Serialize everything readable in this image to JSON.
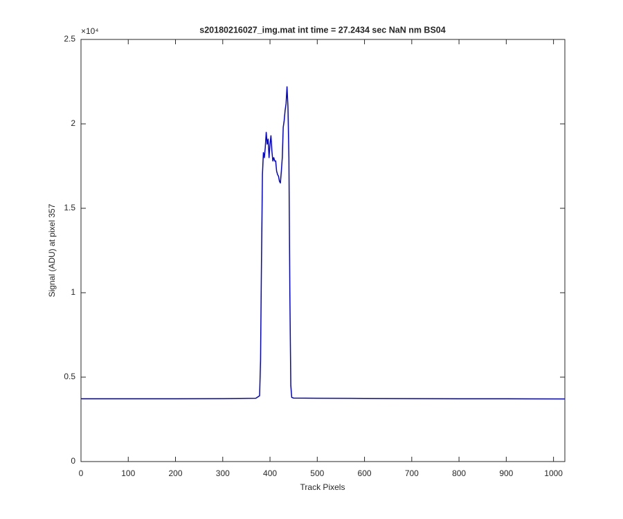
{
  "chart_data": {
    "type": "line",
    "title": "s20180216027_img.mat int time = 27.2434 sec  NaN nm BS04",
    "x_label": "Track Pixels",
    "y_label": "Signal (ADU) at pixel 357",
    "y_exponent_label": "×10⁴",
    "x": [
      0,
      100,
      200,
      300,
      370,
      378,
      380,
      382,
      384,
      386,
      388,
      390,
      392,
      394,
      396,
      398,
      400,
      402,
      404,
      406,
      408,
      410,
      412,
      414,
      416,
      418,
      420,
      422,
      424,
      426,
      428,
      430,
      432,
      434,
      436,
      438,
      440,
      442,
      444,
      446,
      450,
      500,
      600,
      700,
      800,
      900,
      1024
    ],
    "series": [
      {
        "color": "#0000e6",
        "values": [
          0.372,
          0.372,
          0.372,
          0.373,
          0.375,
          0.39,
          0.6,
          1.2,
          1.7,
          1.83,
          1.8,
          1.86,
          1.95,
          1.88,
          1.91,
          1.8,
          1.88,
          1.93,
          1.84,
          1.78,
          1.8,
          1.78,
          1.78,
          1.72,
          1.7,
          1.69,
          1.66,
          1.65,
          1.72,
          1.8,
          1.98,
          2.02,
          2.08,
          2.12,
          2.22,
          2.1,
          1.8,
          1.0,
          0.45,
          0.38,
          0.376,
          0.375,
          0.374,
          0.373,
          0.372,
          0.372,
          0.371
        ]
      }
    ],
    "xlim": [
      0,
      1024
    ],
    "xticks": [
      0,
      100,
      200,
      300,
      400,
      500,
      600,
      700,
      800,
      900,
      1000
    ],
    "ylim": [
      0,
      2.5
    ],
    "yticks": [
      0,
      0.5,
      1,
      1.5,
      2,
      2.5
    ],
    "grid": false
  }
}
